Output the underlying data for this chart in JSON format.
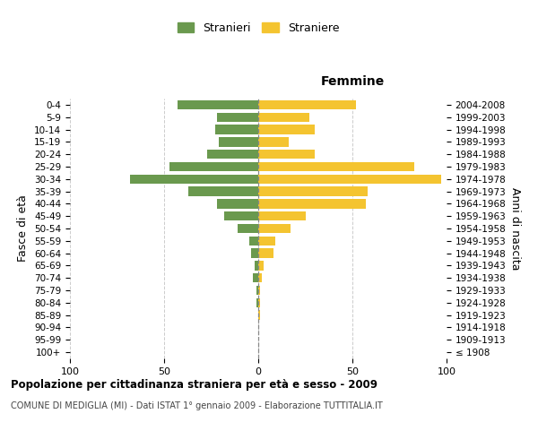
{
  "age_groups": [
    "100+",
    "95-99",
    "90-94",
    "85-89",
    "80-84",
    "75-79",
    "70-74",
    "65-69",
    "60-64",
    "55-59",
    "50-54",
    "45-49",
    "40-44",
    "35-39",
    "30-34",
    "25-29",
    "20-24",
    "15-19",
    "10-14",
    "5-9",
    "0-4"
  ],
  "birth_years": [
    "≤ 1908",
    "1909-1913",
    "1914-1918",
    "1919-1923",
    "1924-1928",
    "1929-1933",
    "1934-1938",
    "1939-1943",
    "1944-1948",
    "1949-1953",
    "1954-1958",
    "1959-1963",
    "1964-1968",
    "1969-1973",
    "1974-1978",
    "1979-1983",
    "1984-1988",
    "1989-1993",
    "1994-1998",
    "1999-2003",
    "2004-2008"
  ],
  "males": [
    0,
    0,
    0,
    0,
    1,
    1,
    3,
    2,
    4,
    5,
    11,
    18,
    22,
    37,
    68,
    47,
    27,
    21,
    23,
    22,
    43
  ],
  "females": [
    0,
    0,
    0,
    1,
    1,
    1,
    2,
    3,
    8,
    9,
    17,
    25,
    57,
    58,
    97,
    83,
    30,
    16,
    30,
    27,
    52
  ],
  "male_color": "#6a994e",
  "female_color": "#f4c430",
  "male_label": "Stranieri",
  "female_label": "Straniere",
  "title": "Popolazione per cittadinanza straniera per età e sesso - 2009",
  "subtitle": "COMUNE DI MEDIGLIA (MI) - Dati ISTAT 1° gennaio 2009 - Elaborazione TUTTITALIA.IT",
  "xlabel_right": "Femmine",
  "ylabel_left": "Fasce di età",
  "ylabel_right": "Anni di nascita",
  "xlim": 100,
  "background_color": "#ffffff",
  "grid_color": "#cccccc"
}
